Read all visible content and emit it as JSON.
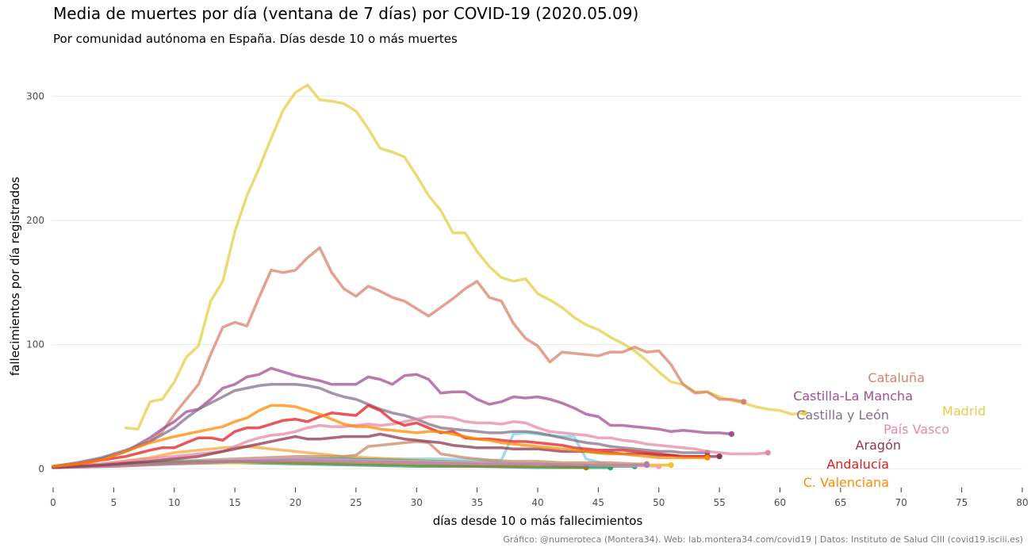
{
  "title": "Media de muertes por día (ventana de 7 días) por COVID-19 (2020.05.09)",
  "subtitle": "Por comunidad autónoma en España. Días desde 10 o más muertes",
  "caption": "Gráfico: @numeroteca (Montera34). Web: lab.montera34.com/covid19 | Datos: Instituto de Salud CIII (covid19.isciii.es)",
  "chart_data": {
    "type": "line",
    "title": "Media de muertes por día (ventana de 7 días) por COVID-19 (2020.05.09)",
    "xlabel": "días desde 10 o más fallecimientos",
    "ylabel": "fallecimientos por día registrados",
    "xlim": [
      0,
      80
    ],
    "ylim": [
      -10,
      320
    ],
    "xticks": [
      0,
      5,
      10,
      15,
      20,
      25,
      30,
      35,
      40,
      45,
      50,
      55,
      60,
      65,
      70,
      75,
      80
    ],
    "yticks": [
      0,
      100,
      200,
      300
    ],
    "grid": true,
    "series": [
      {
        "name": "Madrid",
        "color": "#e6cd47",
        "x": [
          6,
          7,
          8,
          9,
          10,
          11,
          12,
          13,
          14,
          15,
          16,
          17,
          18,
          19,
          20,
          21,
          22,
          23,
          24,
          25,
          26,
          27,
          28,
          29,
          30,
          31,
          32,
          33,
          34,
          35,
          36,
          37,
          38,
          39,
          40,
          41,
          42,
          43,
          44,
          45,
          46,
          47,
          48,
          49,
          50,
          51,
          52,
          53,
          54,
          55,
          56,
          57,
          58,
          59,
          60,
          61,
          62
        ],
        "y": [
          33,
          32,
          54,
          56,
          70,
          90,
          99,
          135,
          151,
          191,
          220,
          242,
          266,
          289,
          303,
          309,
          297,
          296,
          294,
          288,
          274,
          258,
          255,
          251,
          236,
          220,
          208,
          190,
          190,
          175,
          163,
          154,
          151,
          153,
          141,
          136,
          130,
          122,
          116,
          112,
          106,
          101,
          95,
          87,
          78,
          70,
          68,
          62,
          62,
          58,
          55,
          53,
          50,
          48,
          47,
          44,
          45
        ]
      },
      {
        "name": "Cataluña",
        "color": "#d9826a",
        "x": [
          0,
          2,
          4,
          6,
          8,
          9,
          10,
          11,
          12,
          13,
          14,
          15,
          16,
          17,
          18,
          19,
          20,
          21,
          22,
          23,
          24,
          25,
          26,
          27,
          28,
          29,
          30,
          31,
          32,
          33,
          34,
          35,
          36,
          37,
          38,
          39,
          40,
          41,
          42,
          43,
          44,
          45,
          46,
          47,
          48,
          49,
          50,
          51,
          52,
          53,
          54,
          55,
          56,
          57
        ],
        "y": [
          2,
          4,
          8,
          14,
          22,
          30,
          44,
          56,
          68,
          92,
          114,
          118,
          115,
          138,
          160,
          158,
          160,
          170,
          178,
          158,
          145,
          139,
          147,
          143,
          138,
          135,
          129,
          123,
          130,
          137,
          145,
          151,
          138,
          135,
          117,
          105,
          99,
          86,
          94,
          93,
          92,
          91,
          94,
          94,
          98,
          94,
          95,
          84,
          68,
          61,
          62,
          56,
          56,
          54
        ]
      },
      {
        "name": "Castilla-La Mancha",
        "color": "#a14f94",
        "x": [
          0,
          2,
          4,
          6,
          8,
          9,
          10,
          11,
          12,
          13,
          14,
          15,
          16,
          17,
          18,
          19,
          20,
          21,
          22,
          23,
          24,
          25,
          26,
          27,
          28,
          29,
          30,
          31,
          32,
          33,
          34,
          35,
          36,
          37,
          38,
          39,
          40,
          41,
          42,
          43,
          44,
          45,
          46,
          47,
          48,
          49,
          50,
          51,
          52,
          53,
          54,
          55,
          56
        ],
        "y": [
          2,
          4,
          8,
          14,
          25,
          32,
          38,
          46,
          48,
          56,
          65,
          68,
          74,
          76,
          81,
          78,
          75,
          73,
          71,
          68,
          68,
          68,
          74,
          72,
          68,
          75,
          76,
          72,
          61,
          62,
          62,
          56,
          52,
          54,
          58,
          57,
          58,
          56,
          53,
          49,
          44,
          42,
          35,
          35,
          34,
          33,
          32,
          30,
          31,
          30,
          29,
          29,
          28
        ]
      },
      {
        "name": "Castilla y León",
        "color": "#827289",
        "x": [
          0,
          2,
          4,
          6,
          8,
          10,
          11,
          12,
          13,
          14,
          15,
          16,
          17,
          18,
          19,
          20,
          21,
          22,
          23,
          24,
          25,
          26,
          27,
          28,
          29,
          30,
          31,
          32,
          33,
          34,
          35,
          36,
          37,
          38,
          39,
          40,
          41,
          42,
          43,
          44,
          45,
          46,
          47,
          48,
          49,
          50,
          51,
          52,
          53,
          54
        ],
        "y": [
          2,
          5,
          9,
          15,
          22,
          33,
          41,
          48,
          53,
          58,
          63,
          65,
          67,
          68,
          68,
          68,
          67,
          65,
          61,
          58,
          56,
          52,
          48,
          45,
          43,
          40,
          36,
          33,
          32,
          31,
          30,
          29,
          29,
          30,
          30,
          29,
          27,
          25,
          23,
          21,
          20,
          18,
          17,
          16,
          15,
          14,
          14,
          13,
          13,
          13
        ]
      },
      {
        "name": "País Vasco",
        "color": "#e58aa8",
        "x": [
          0,
          4,
          8,
          12,
          14,
          15,
          16,
          17,
          18,
          19,
          20,
          21,
          22,
          23,
          24,
          25,
          26,
          27,
          28,
          29,
          30,
          31,
          32,
          33,
          34,
          35,
          36,
          37,
          38,
          39,
          40,
          41,
          42,
          43,
          44,
          45,
          46,
          47,
          48,
          49,
          50,
          51,
          52,
          53,
          54,
          55,
          56,
          57,
          58,
          59
        ],
        "y": [
          2,
          4,
          8,
          12,
          14,
          18,
          22,
          25,
          27,
          28,
          30,
          33,
          35,
          34,
          34,
          35,
          36,
          35,
          36,
          38,
          40,
          42,
          42,
          41,
          38,
          37,
          37,
          36,
          38,
          37,
          33,
          30,
          29,
          28,
          27,
          25,
          25,
          23,
          22,
          20,
          19,
          18,
          17,
          16,
          14,
          13,
          12,
          12,
          12,
          13
        ]
      },
      {
        "name": "Aragón",
        "color": "#8f3752",
        "x": [
          0,
          4,
          8,
          12,
          14,
          16,
          18,
          19,
          20,
          21,
          22,
          23,
          24,
          25,
          26,
          27,
          28,
          29,
          30,
          31,
          32,
          33,
          34,
          35,
          36,
          37,
          38,
          39,
          40,
          41,
          42,
          43,
          44,
          45,
          46,
          47,
          48,
          49,
          50,
          51,
          52,
          53,
          54,
          55
        ],
        "y": [
          1,
          3,
          6,
          10,
          14,
          18,
          22,
          24,
          26,
          24,
          24,
          25,
          26,
          26,
          26,
          28,
          26,
          24,
          23,
          22,
          21,
          19,
          18,
          17,
          17,
          17,
          16,
          16,
          16,
          15,
          14,
          14,
          14,
          13,
          13,
          12,
          12,
          12,
          11,
          11,
          10,
          10,
          10,
          10
        ]
      },
      {
        "name": "Andalucía",
        "color": "#e02020",
        "x": [
          0,
          2,
          4,
          6,
          8,
          9,
          10,
          11,
          12,
          13,
          14,
          15,
          16,
          17,
          18,
          19,
          20,
          21,
          22,
          23,
          24,
          25,
          26,
          27,
          28,
          29,
          30,
          31,
          32,
          33,
          34,
          35,
          36,
          37,
          38,
          39,
          40,
          41,
          42,
          43,
          44,
          45,
          46,
          47,
          48,
          49,
          50,
          51,
          52,
          53,
          54
        ],
        "y": [
          2,
          4,
          7,
          10,
          15,
          17,
          17,
          21,
          25,
          25,
          23,
          30,
          33,
          33,
          36,
          39,
          40,
          38,
          42,
          45,
          44,
          43,
          51,
          47,
          39,
          35,
          37,
          33,
          29,
          30,
          25,
          24,
          24,
          23,
          22,
          22,
          21,
          20,
          19,
          17,
          16,
          15,
          15,
          15,
          14,
          13,
          12,
          11,
          10,
          10,
          10
        ]
      },
      {
        "name": "C. Valenciana",
        "color": "#ff8a00",
        "x": [
          0,
          2,
          4,
          6,
          8,
          10,
          11,
          12,
          13,
          14,
          15,
          16,
          17,
          18,
          19,
          20,
          21,
          22,
          23,
          24,
          25,
          26,
          27,
          28,
          29,
          30,
          31,
          32,
          33,
          34,
          35,
          36,
          37,
          38,
          39,
          40,
          41,
          42,
          43,
          44,
          45,
          46,
          47,
          48,
          49,
          50,
          51,
          52,
          53,
          54
        ],
        "y": [
          2,
          4,
          7,
          14,
          21,
          26,
          28,
          30,
          32,
          34,
          38,
          41,
          47,
          51,
          51,
          50,
          47,
          44,
          40,
          36,
          34,
          34,
          32,
          31,
          30,
          29,
          30,
          30,
          28,
          26,
          24,
          23,
          21,
          20,
          19,
          18,
          17,
          16,
          15,
          14,
          13,
          12,
          12,
          11,
          10,
          9,
          9,
          9,
          9,
          9
        ]
      },
      {
        "name": "",
        "color": "#7fd3e3",
        "x": [
          0,
          4,
          8,
          12,
          16,
          20,
          24,
          28,
          32,
          36,
          37,
          38,
          39,
          40,
          41,
          42,
          43,
          44,
          46,
          48
        ],
        "y": [
          1,
          2,
          4,
          6,
          7,
          8,
          8,
          8,
          8,
          7,
          7,
          28,
          29,
          28,
          27,
          26,
          26,
          8,
          3,
          2
        ]
      },
      {
        "name": "",
        "color": "#f5a83a",
        "x": [
          0,
          4,
          8,
          10,
          12,
          14,
          16,
          18,
          20,
          22,
          24,
          26,
          28,
          30,
          32,
          34,
          36,
          38,
          40,
          42,
          44,
          46,
          48,
          50,
          51
        ],
        "y": [
          1,
          4,
          9,
          13,
          15,
          17,
          18,
          16,
          14,
          12,
          10,
          9,
          8,
          7,
          6,
          5,
          5,
          4,
          4,
          3,
          3,
          3,
          3,
          3,
          3
        ]
      },
      {
        "name": "",
        "color": "#c88a68",
        "x": [
          0,
          5,
          10,
          15,
          20,
          24,
          25,
          26,
          28,
          30,
          31,
          32,
          34,
          36,
          38,
          40,
          42,
          44,
          46,
          48,
          49
        ],
        "y": [
          1,
          3,
          6,
          8,
          10,
          10,
          11,
          18,
          20,
          22,
          21,
          12,
          9,
          7,
          6,
          6,
          5,
          5,
          5,
          4,
          4
        ]
      },
      {
        "name": "",
        "color": "#2ca25f",
        "x": [
          0,
          5,
          10,
          15,
          20,
          25,
          30,
          35,
          40,
          44,
          46
        ],
        "y": [
          1,
          3,
          4,
          5,
          4,
          3,
          2,
          2,
          1,
          1,
          1
        ]
      },
      {
        "name": "",
        "color": "#21a98b",
        "x": [
          0,
          4,
          8,
          12,
          16,
          20,
          24,
          28,
          32,
          36,
          40,
          44,
          48
        ],
        "y": [
          1,
          3,
          5,
          6,
          7,
          8,
          8,
          7,
          6,
          5,
          4,
          2,
          2
        ]
      },
      {
        "name": "",
        "color": "#f0a0c8",
        "x": [
          0,
          5,
          10,
          15,
          20,
          25,
          30,
          35,
          40,
          45,
          50
        ],
        "y": [
          1,
          3,
          5,
          7,
          8,
          7,
          6,
          5,
          4,
          3,
          2
        ]
      },
      {
        "name": "",
        "color": "#f5c330",
        "x": [
          0,
          5,
          10,
          15,
          20,
          25,
          30,
          35,
          40,
          45,
          51
        ],
        "y": [
          1,
          2,
          4,
          5,
          6,
          6,
          5,
          4,
          4,
          3,
          3
        ]
      },
      {
        "name": "",
        "color": "#8b7d3a",
        "x": [
          0,
          5,
          10,
          15,
          20,
          25,
          30,
          35,
          40,
          44
        ],
        "y": [
          1,
          3,
          5,
          6,
          5,
          4,
          3,
          2,
          2,
          1
        ]
      },
      {
        "name": "",
        "color": "#b07ab8",
        "x": [
          0,
          5,
          10,
          15,
          20,
          25,
          30,
          35,
          40,
          45,
          49
        ],
        "y": [
          1,
          2,
          4,
          6,
          7,
          6,
          5,
          4,
          4,
          3,
          3
        ]
      }
    ]
  }
}
